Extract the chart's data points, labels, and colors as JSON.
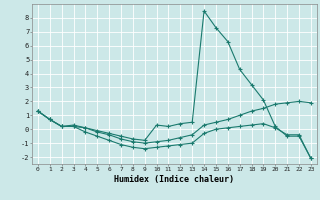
{
  "xlabel": "Humidex (Indice chaleur)",
  "bg_color": "#cce8e8",
  "line_color": "#1a7a6e",
  "grid_color": "#ffffff",
  "xlim": [
    -0.5,
    23.5
  ],
  "ylim": [
    -2.5,
    9.0
  ],
  "yticks": [
    -2,
    -1,
    0,
    1,
    2,
    3,
    4,
    5,
    6,
    7,
    8
  ],
  "xticks": [
    0,
    1,
    2,
    3,
    4,
    5,
    6,
    7,
    8,
    9,
    10,
    11,
    12,
    13,
    14,
    15,
    16,
    17,
    18,
    19,
    20,
    21,
    22,
    23
  ],
  "line1_x": [
    0,
    1,
    2,
    3,
    4,
    5,
    6,
    7,
    8,
    9,
    10,
    11,
    12,
    13,
    14,
    15,
    16,
    17,
    18,
    19,
    20,
    21,
    22,
    23
  ],
  "line1_y": [
    1.3,
    0.7,
    0.2,
    0.2,
    0.1,
    -0.1,
    -0.3,
    -0.5,
    -0.7,
    -0.8,
    0.3,
    0.2,
    0.4,
    0.5,
    8.5,
    7.3,
    6.3,
    4.3,
    3.2,
    2.1,
    0.2,
    -0.5,
    -0.5,
    -2.1
  ],
  "line2_x": [
    0,
    1,
    2,
    3,
    4,
    5,
    6,
    7,
    8,
    9,
    10,
    11,
    12,
    13,
    14,
    15,
    16,
    17,
    18,
    19,
    20,
    21,
    22,
    23
  ],
  "line2_y": [
    1.3,
    0.7,
    0.2,
    0.3,
    0.1,
    -0.2,
    -0.4,
    -0.7,
    -0.9,
    -1.0,
    -0.9,
    -0.8,
    -0.6,
    -0.4,
    0.3,
    0.5,
    0.7,
    1.0,
    1.3,
    1.5,
    1.8,
    1.9,
    2.0,
    1.9
  ],
  "line3_x": [
    0,
    1,
    2,
    3,
    4,
    5,
    6,
    7,
    8,
    9,
    10,
    11,
    12,
    13,
    14,
    15,
    16,
    17,
    18,
    19,
    20,
    21,
    22,
    23
  ],
  "line3_y": [
    1.3,
    0.7,
    0.2,
    0.2,
    -0.2,
    -0.5,
    -0.8,
    -1.1,
    -1.3,
    -1.4,
    -1.3,
    -1.2,
    -1.1,
    -1.0,
    -0.3,
    0.0,
    0.1,
    0.2,
    0.3,
    0.4,
    0.1,
    -0.4,
    -0.4,
    -2.1
  ]
}
